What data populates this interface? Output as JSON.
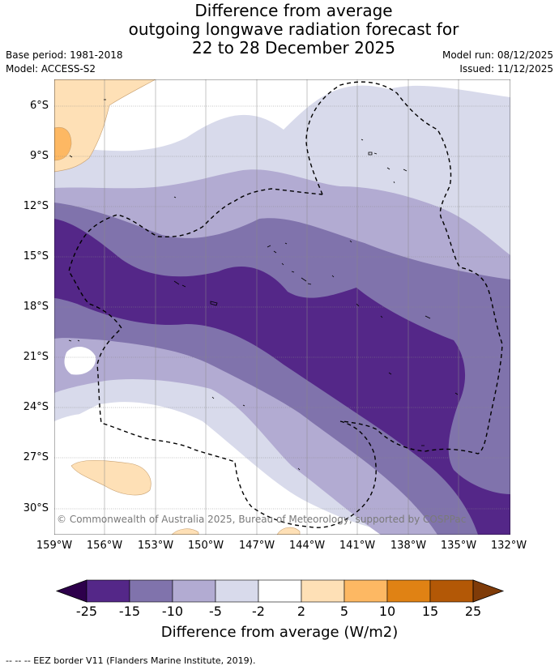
{
  "title": {
    "line1": "Difference from average",
    "line2": "outgoing longwave radiation forecast for",
    "line3": "22 to 28 December 2025"
  },
  "meta_left": {
    "base_period": "Base period: 1981-2018",
    "model": "Model: ACCESS-S2"
  },
  "meta_right": {
    "model_run": "Model run: 08/12/2025",
    "issued": "Issued: 11/12/2025"
  },
  "map": {
    "lat_labels": [
      "6°S",
      "9°S",
      "12°S",
      "15°S",
      "18°S",
      "21°S",
      "24°S",
      "27°S",
      "30°S"
    ],
    "lon_labels": [
      "159°W",
      "156°W",
      "153°W",
      "150°W",
      "147°W",
      "144°W",
      "141°W",
      "138°W",
      "135°W",
      "132°W"
    ],
    "copyright": "© Commonwealth of Australia 2025, Bureau of Meteorology, supported by COSPPac"
  },
  "colorbar": {
    "ticks": [
      "-25",
      "-15",
      "-10",
      "-5",
      "-2",
      "2",
      "5",
      "10",
      "15",
      "25"
    ],
    "title": "Difference from average (W/m2)",
    "colors": [
      "#2d004b",
      "#542788",
      "#8073ac",
      "#b2abd2",
      "#d8daeb",
      "#ffffff",
      "#fee0b6",
      "#fdb863",
      "#e08214",
      "#b35806",
      "#7f3b08"
    ]
  },
  "footnote": "--  --  -- EEZ border V11 (Flanders Marine Institute, 2019)."
}
